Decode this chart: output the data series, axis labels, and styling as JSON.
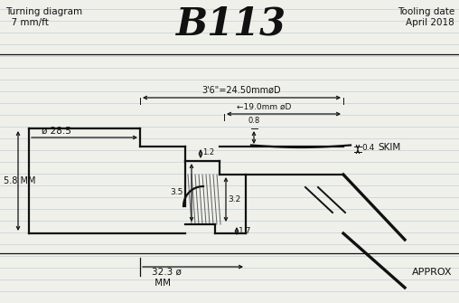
{
  "background_color": "#f0f0eb",
  "line_color": "#111111",
  "ruled_line_color": "#c0cfd8",
  "title_left": "Turning diagram\n  7 mm/ft",
  "title_center": "B113",
  "title_right": "Tooling date\nApril 2018",
  "dim_36_label": "3'6\"=24.50mmøD",
  "dim_190_label": "←19.0mm øD",
  "dim_285_label": "ø 28.5",
  "dim_08_label": "0.8",
  "dim_12_label": "1.2",
  "dim_35_label": "3.5",
  "dim_32_label": "3.2",
  "dim_17_label": "1.7",
  "dim_04_label": "0.4",
  "dim_58_label": "5.8 MM",
  "dim_323_label": "32.3 ø\n MM",
  "approx_label": "APPROX",
  "skim_label": "SKIM",
  "lw": 1.6,
  "tlw": 2.4
}
